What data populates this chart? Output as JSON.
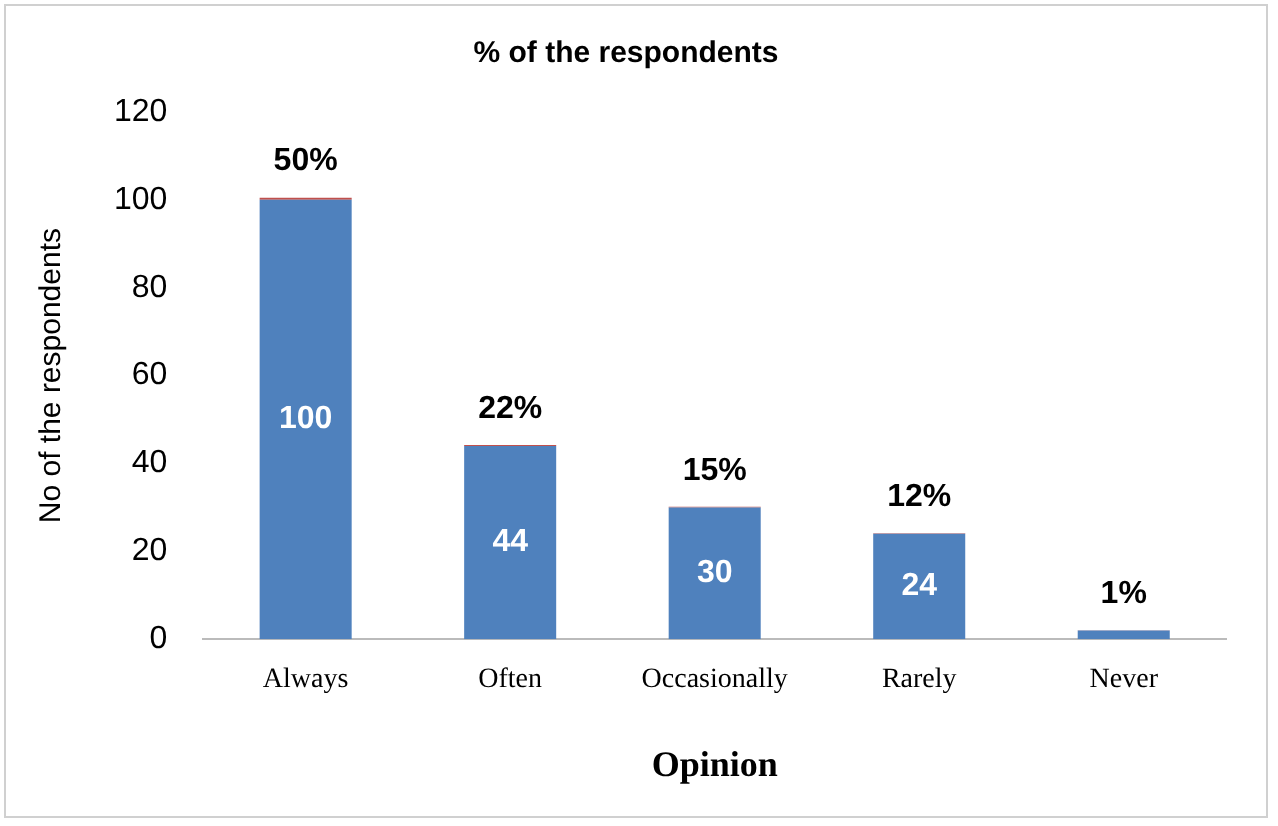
{
  "chart_data": {
    "type": "bar",
    "title": "% of the respondents",
    "xlabel": "Opinion",
    "ylabel": "No of the respondents",
    "categories": [
      "Always",
      "Often",
      "Occasionally",
      "Rarely",
      "Never"
    ],
    "stacked": true,
    "series": [
      {
        "color": "#4f81bd",
        "values": [
          100,
          44,
          30,
          24,
          2
        ],
        "value_labels": [
          "100",
          "44",
          "30",
          "24",
          null
        ]
      },
      {
        "color": "#c0504d",
        "values": [
          0.5,
          0.22,
          0.15,
          0.12,
          0.01
        ],
        "value_labels": [
          "50%",
          "22%",
          "15%",
          "12%",
          "1%"
        ]
      }
    ],
    "ylim": [
      0,
      120
    ],
    "yticks": [
      0,
      20,
      40,
      60,
      80,
      100,
      120
    ],
    "grid": false,
    "legend": false
  }
}
